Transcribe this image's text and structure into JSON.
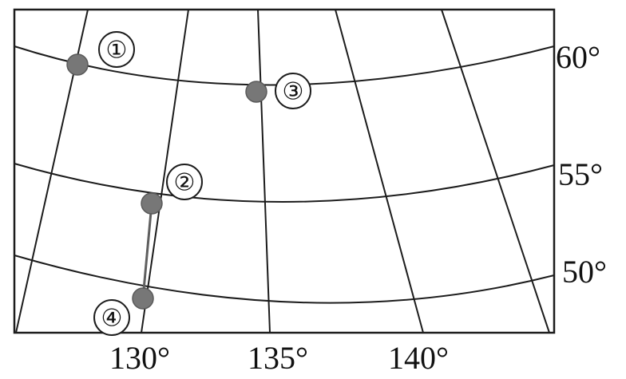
{
  "map": {
    "latitude_labels": [
      "60°",
      "55°",
      "50°"
    ],
    "longitude_labels": [
      "130°",
      "135°",
      "140°"
    ],
    "points": [
      {
        "id": "point-1",
        "label": "①"
      },
      {
        "id": "point-2",
        "label": "②"
      },
      {
        "id": "point-3",
        "label": "③"
      },
      {
        "id": "point-4",
        "label": "④"
      }
    ],
    "colors": {
      "grid": "#1c1c1c",
      "point": "#777777",
      "route": "#5f5f5f"
    }
  }
}
